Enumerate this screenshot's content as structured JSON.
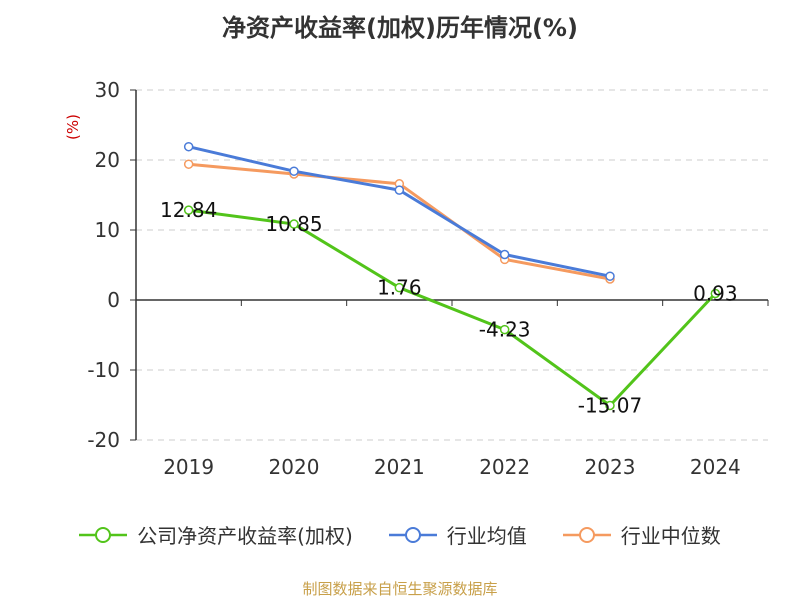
{
  "chart_data": {
    "type": "line",
    "title": "净资产收益率(加权)历年情况(%)",
    "ylabel": "(%)",
    "ylim": [
      -20,
      30
    ],
    "yticks": [
      "30",
      "20",
      "10",
      "0",
      "-10",
      "-20"
    ],
    "categories": [
      "2019",
      "2020",
      "2021",
      "2022",
      "2023",
      "2024"
    ],
    "grid": true,
    "legend_position": "bottom",
    "series": [
      {
        "name": "公司净资产收益率(加权)",
        "color": "#52c41a",
        "values": [
          12.84,
          10.85,
          1.76,
          -4.23,
          -15.07,
          0.93
        ],
        "labels": [
          "12.84",
          "10.85",
          "1.76",
          "-4.23",
          "-15.07",
          "0.93"
        ]
      },
      {
        "name": "行业均值",
        "color": "#4a7bd8",
        "values": [
          21.9,
          18.4,
          15.7,
          6.5,
          3.4,
          null
        ]
      },
      {
        "name": "行业中位数",
        "color": "#f59a5f",
        "values": [
          19.4,
          18.0,
          16.6,
          5.8,
          3.0,
          null
        ]
      }
    ]
  },
  "source_note": "制图数据来自恒生聚源数据库"
}
